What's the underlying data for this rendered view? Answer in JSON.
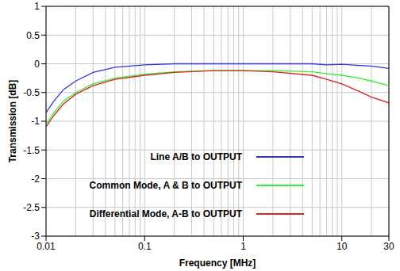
{
  "chart_data": {
    "type": "line",
    "x_label": "Frequency [MHz]",
    "y_label": "Transmission [dB]",
    "log": "x",
    "grid": true,
    "legend": "center",
    "xlim": [
      0.01,
      30
    ],
    "xticks": [
      0.01,
      0.1,
      1,
      10,
      30
    ],
    "ylim": [
      -3,
      1
    ],
    "yticks": [
      -3,
      -2.5,
      -2,
      -1.5,
      -1,
      -0.5,
      0,
      0.5,
      1
    ],
    "x": [
      0.01,
      0.012,
      0.015,
      0.02,
      0.03,
      0.05,
      0.1,
      0.2,
      0.5,
      1,
      2,
      5,
      7,
      10,
      15,
      20,
      30
    ],
    "series": [
      {
        "name": "Line A/B to OUTPUT",
        "color": "#3333dd",
        "values": [
          -0.85,
          -0.65,
          -0.45,
          -0.3,
          -0.15,
          -0.06,
          -0.02,
          0,
          0,
          0,
          0,
          0,
          -0.02,
          -0.01,
          -0.03,
          -0.04,
          -0.08
        ]
      },
      {
        "name": "Common Mode, A & B to OUTPUT",
        "color": "#33ee33",
        "values": [
          -1.05,
          -0.85,
          -0.65,
          -0.5,
          -0.35,
          -0.25,
          -0.18,
          -0.14,
          -0.12,
          -0.12,
          -0.12,
          -0.14,
          -0.17,
          -0.2,
          -0.25,
          -0.3,
          -0.38
        ]
      },
      {
        "name": "Differential Mode, A-B to OUTPUT",
        "color": "#dd2222",
        "values": [
          -1.1,
          -0.9,
          -0.7,
          -0.53,
          -0.38,
          -0.27,
          -0.2,
          -0.15,
          -0.12,
          -0.12,
          -0.14,
          -0.2,
          -0.27,
          -0.35,
          -0.48,
          -0.58,
          -0.68
        ]
      }
    ]
  }
}
